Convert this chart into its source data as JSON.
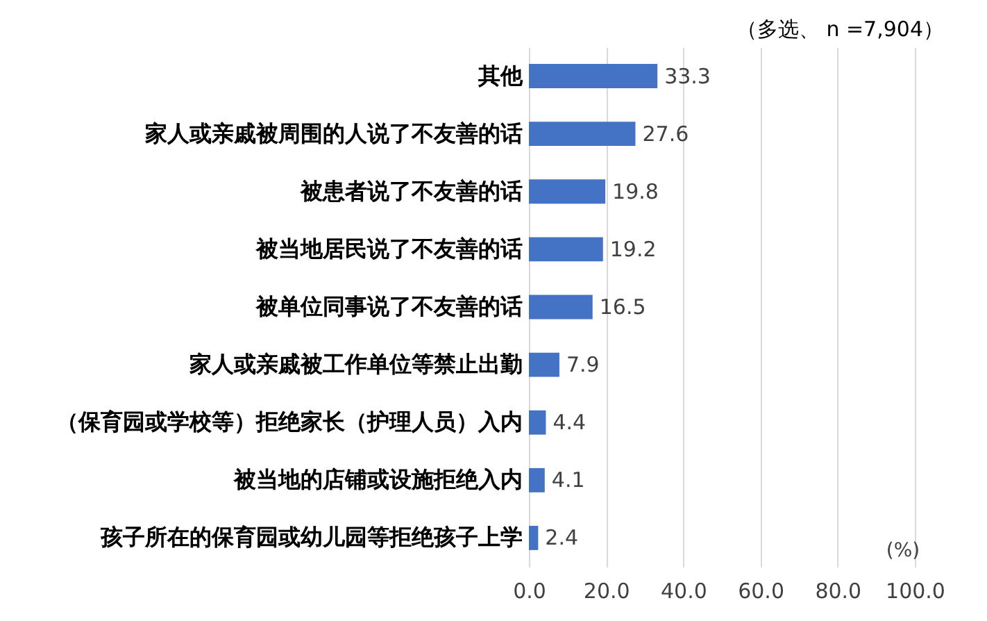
{
  "chart_data": {
    "type": "bar",
    "orientation": "horizontal",
    "categories": [
      "其他",
      "家人或亲戚被周围的人说了不友善的话",
      "被患者说了不友善的话",
      "被当地居民说了不友善的话",
      "被单位同事说了不友善的话",
      "家人或亲戚被工作单位等禁止出勤",
      "（保育园或学校等）拒绝家长（护理人员）入内",
      "被当地的店铺或设施拒绝入内",
      "孩子所在的保育园或幼儿园等拒绝孩子上学"
    ],
    "values": [
      33.3,
      27.6,
      19.8,
      19.2,
      16.5,
      7.9,
      4.4,
      4.1,
      2.4
    ],
    "color": "#4472c4",
    "data_labels": true,
    "xlabel": "(%)",
    "xlim": [
      0,
      100
    ],
    "xticks": [
      {
        "value": 0,
        "label": "0.0"
      },
      {
        "value": 20,
        "label": "20.0"
      },
      {
        "value": 40,
        "label": "40.0"
      },
      {
        "value": 60,
        "label": "60.0"
      },
      {
        "value": 80,
        "label": "80.0"
      },
      {
        "value": 100,
        "label": "100.0"
      }
    ],
    "grid": true,
    "annotations": [
      "（多选、 n =7,904）"
    ]
  }
}
